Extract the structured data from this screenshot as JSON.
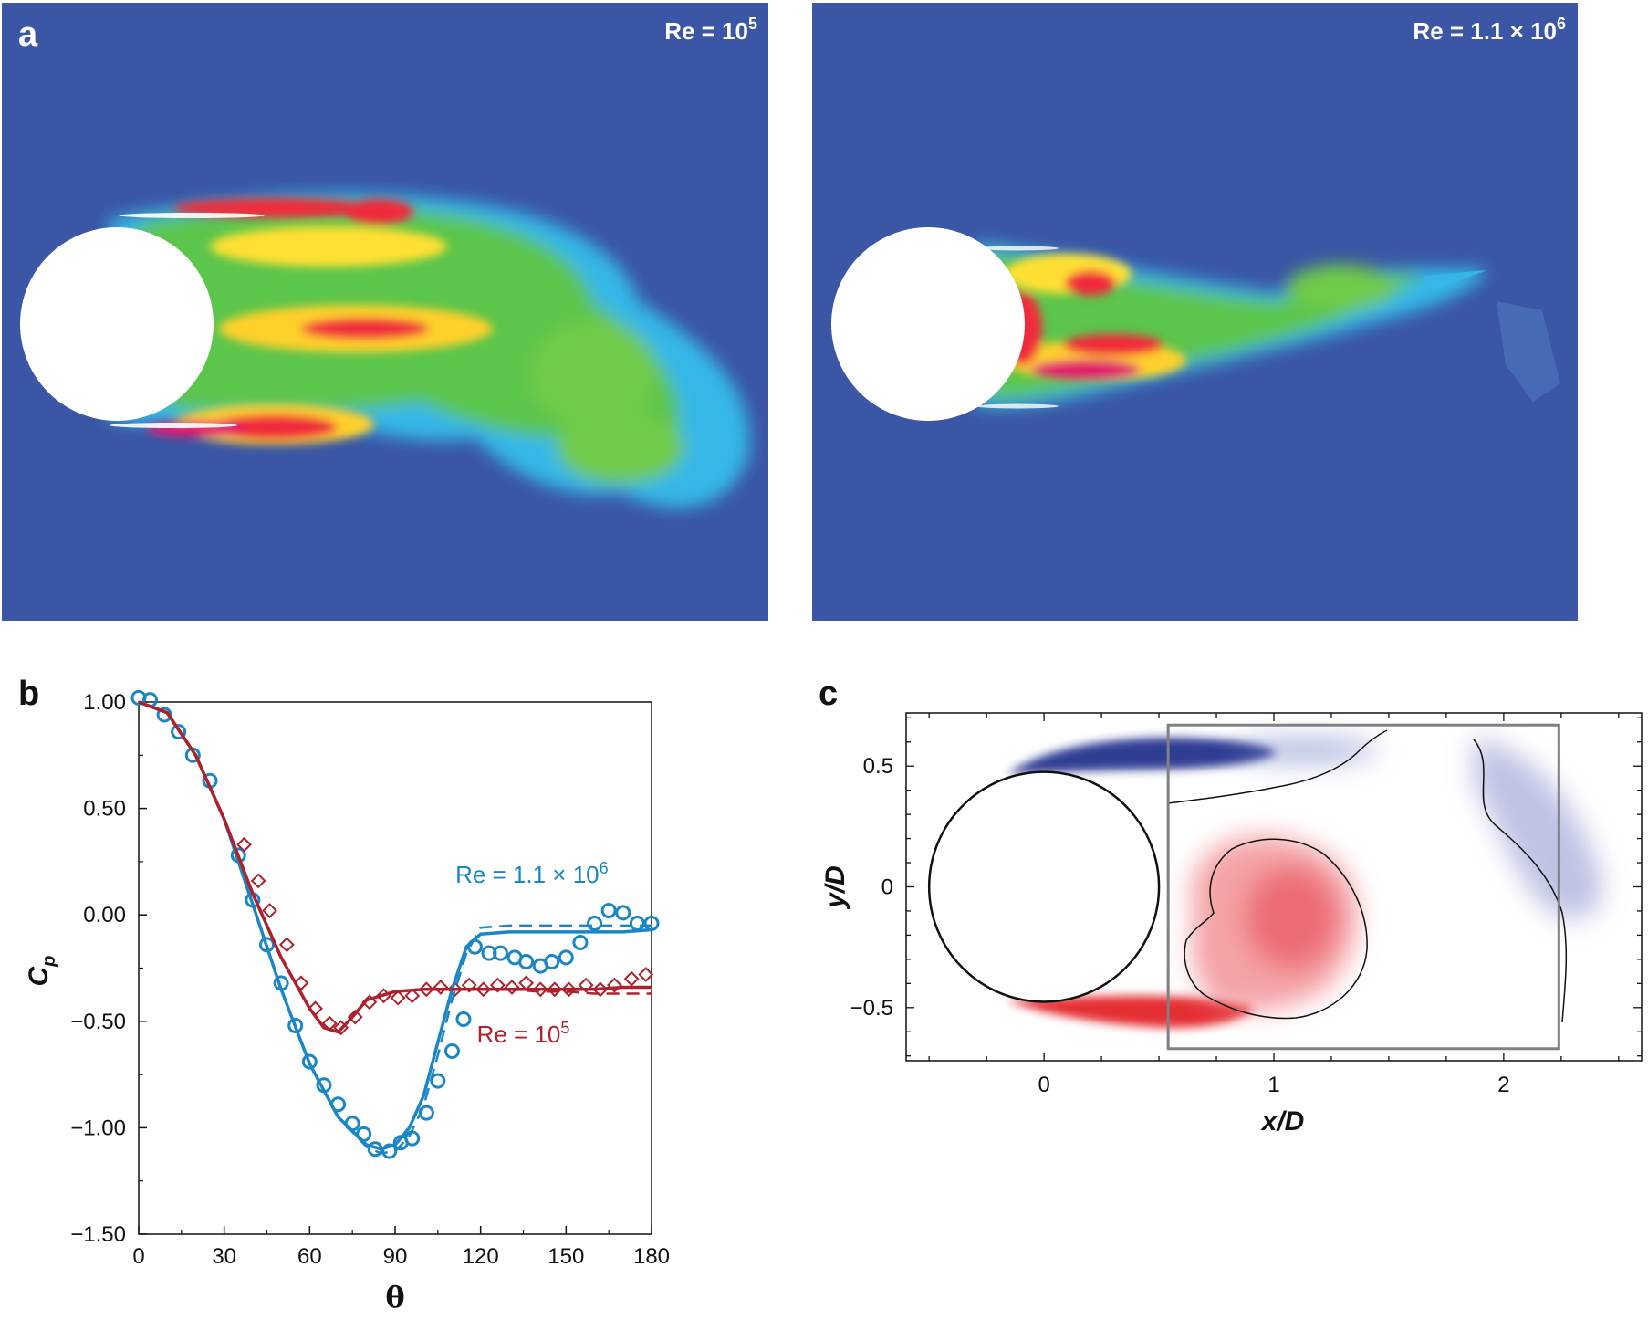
{
  "panels": {
    "a": {
      "label": "a",
      "left_title_prefix": "Re = 10",
      "left_title_sup": "5",
      "right_title_prefix": "Re = 1.1 × 10",
      "right_title_sup": "6"
    },
    "b": {
      "label": "b"
    },
    "c": {
      "label": "c"
    }
  },
  "colors": {
    "field_background": "#3a56a5",
    "blue_series": "#1b86c6",
    "red_series": "#b0202a",
    "vort_negative": "#1c2a8a",
    "vort_positive": "#e31b23",
    "box": "#808080"
  },
  "chart_data": [
    {
      "id": "b",
      "type": "line",
      "xlabel": "θ",
      "ylabel": "C",
      "ylabel_sub": "p",
      "xlim": [
        0,
        180
      ],
      "ylim": [
        -1.5,
        1.0
      ],
      "xticks": [
        0,
        30,
        60,
        90,
        120,
        150,
        180
      ],
      "xtick_labels": [
        "0",
        "30",
        "60",
        "90",
        "120",
        "150",
        "180"
      ],
      "yticks": [
        1.0,
        0.5,
        0.0,
        -0.5,
        -1.0,
        -1.5
      ],
      "ytick_labels": [
        "1.00",
        "0.50",
        "0.00",
        "−0.50",
        "−1.00",
        "−1.50"
      ],
      "annotations": [
        {
          "text_prefix": "Re = 1.1 × 10",
          "text_sup": "6",
          "color": "blue",
          "x": 138,
          "y": 0.15
        },
        {
          "text_prefix": "Re = 10",
          "text_sup": "5",
          "color": "red",
          "x": 135,
          "y": -0.6
        }
      ],
      "series": [
        {
          "key": "hi_exp",
          "style": "circle-markers",
          "color": "blue",
          "x": [
            0,
            4,
            9,
            14,
            19,
            25,
            35,
            40,
            45,
            50,
            55,
            60,
            65,
            70,
            75,
            79,
            83,
            88,
            92,
            96,
            101,
            105,
            110,
            114,
            118,
            123,
            127,
            132,
            136,
            141,
            145,
            150,
            155,
            160,
            165,
            170,
            175,
            180
          ],
          "y": [
            1.02,
            1.01,
            0.94,
            0.86,
            0.75,
            0.63,
            0.28,
            0.07,
            -0.14,
            -0.32,
            -0.52,
            -0.69,
            -0.8,
            -0.89,
            -0.98,
            -1.03,
            -1.1,
            -1.11,
            -1.07,
            -1.05,
            -0.93,
            -0.78,
            -0.64,
            -0.49,
            -0.15,
            -0.18,
            -0.18,
            -0.2,
            -0.22,
            -0.24,
            -0.22,
            -0.2,
            -0.13,
            -0.04,
            0.02,
            0.01,
            -0.04,
            -0.04
          ]
        },
        {
          "key": "lo_exp",
          "style": "diamond-markers",
          "color": "red",
          "x": [
            37,
            42,
            46,
            52,
            57,
            62,
            67,
            71,
            76,
            81,
            86,
            91,
            96,
            101,
            106,
            111,
            116,
            121,
            126,
            131,
            136,
            141,
            146,
            151,
            157,
            162,
            167,
            173,
            178
          ],
          "y": [
            0.33,
            0.16,
            0.02,
            -0.14,
            -0.32,
            -0.44,
            -0.51,
            -0.53,
            -0.48,
            -0.41,
            -0.38,
            -0.39,
            -0.38,
            -0.35,
            -0.34,
            -0.35,
            -0.33,
            -0.35,
            -0.33,
            -0.34,
            -0.32,
            -0.35,
            -0.35,
            -0.35,
            -0.33,
            -0.35,
            -0.33,
            -0.3,
            -0.28
          ]
        },
        {
          "key": "hi_sim",
          "style": "solid",
          "color": "blue",
          "x": [
            0,
            10,
            20,
            30,
            40,
            50,
            60,
            70,
            80,
            85,
            90,
            95,
            100,
            105,
            110,
            115,
            120,
            130,
            140,
            150,
            160,
            170,
            180
          ],
          "y": [
            1.0,
            0.95,
            0.75,
            0.45,
            0.05,
            -0.35,
            -0.7,
            -0.95,
            -1.08,
            -1.1,
            -1.08,
            -1.0,
            -0.85,
            -0.6,
            -0.35,
            -0.15,
            -0.09,
            -0.08,
            -0.08,
            -0.08,
            -0.08,
            -0.08,
            -0.07
          ]
        },
        {
          "key": "hi_sim_dash",
          "style": "dashed",
          "color": "blue",
          "x": [
            0,
            10,
            20,
            30,
            40,
            50,
            60,
            70,
            80,
            85,
            90,
            95,
            100,
            105,
            110,
            115,
            120,
            130,
            140,
            150,
            160,
            170,
            180
          ],
          "y": [
            1.0,
            0.95,
            0.75,
            0.45,
            0.05,
            -0.35,
            -0.7,
            -0.95,
            -1.09,
            -1.12,
            -1.11,
            -1.04,
            -0.9,
            -0.66,
            -0.4,
            -0.18,
            -0.06,
            -0.05,
            -0.05,
            -0.05,
            -0.05,
            -0.05,
            -0.05
          ]
        },
        {
          "key": "lo_sim",
          "style": "solid",
          "color": "red",
          "x": [
            0,
            10,
            20,
            30,
            40,
            50,
            60,
            65,
            70,
            75,
            80,
            90,
            100,
            110,
            120,
            130,
            140,
            150,
            160,
            170,
            180
          ],
          "y": [
            1.0,
            0.95,
            0.75,
            0.45,
            0.1,
            -0.2,
            -0.44,
            -0.53,
            -0.55,
            -0.48,
            -0.4,
            -0.36,
            -0.35,
            -0.35,
            -0.35,
            -0.35,
            -0.35,
            -0.35,
            -0.35,
            -0.34,
            -0.34
          ]
        },
        {
          "key": "lo_sim_dash",
          "style": "dashed",
          "color": "red",
          "x": [
            0,
            10,
            20,
            30,
            40,
            50,
            60,
            65,
            70,
            75,
            80,
            90,
            100,
            110,
            120,
            130,
            140,
            150,
            160,
            170,
            180
          ],
          "y": [
            1.0,
            0.95,
            0.75,
            0.45,
            0.1,
            -0.2,
            -0.44,
            -0.53,
            -0.55,
            -0.48,
            -0.4,
            -0.36,
            -0.35,
            -0.35,
            -0.35,
            -0.35,
            -0.36,
            -0.36,
            -0.37,
            -0.37,
            -0.37
          ]
        }
      ]
    },
    {
      "id": "c",
      "type": "heatmap",
      "xlabel": "x/D",
      "ylabel": "y/D",
      "xlim": [
        -0.6,
        2.6
      ],
      "ylim": [
        -0.72,
        0.72
      ],
      "xticks": [
        0,
        1,
        2
      ],
      "xtick_labels": [
        "0",
        "1",
        "2"
      ],
      "yticks": [
        0.5,
        0,
        -0.5
      ],
      "ytick_labels": [
        "0.5",
        "0",
        "−0.5"
      ],
      "cylinder": {
        "cx": 0,
        "cy": 0,
        "r": 0.5
      },
      "measurement_box": {
        "x0": 0.54,
        "x1": 2.24,
        "y0": -0.67,
        "y1": 0.67
      }
    }
  ]
}
